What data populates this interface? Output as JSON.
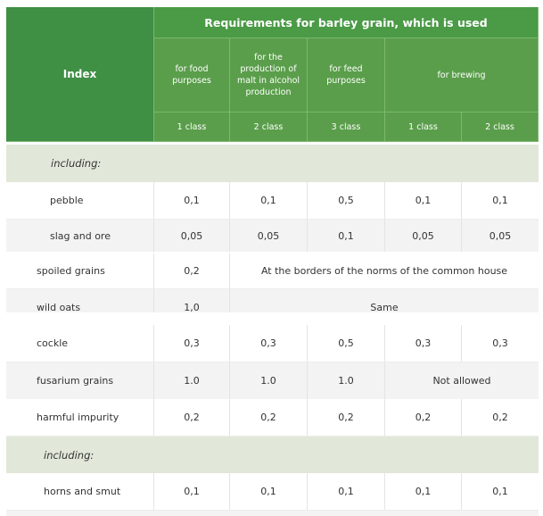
{
  "header": {
    "index_label": "Index",
    "group_title": "Requirements for barley grain, which is used",
    "purposes": [
      "for food purposes",
      "for the production of malt in alcohol production",
      "for feed purposes",
      "for brewing"
    ],
    "classes": [
      "1 class",
      "2 class",
      "3 class",
      "1 class",
      "2 class"
    ]
  },
  "section_label": "including:",
  "rows": [
    {
      "name": "pebble",
      "values": [
        "0,1",
        "0,1",
        "0,5",
        "0,1",
        "0,1"
      ]
    },
    {
      "name": "slag and ore",
      "values": [
        "0,05",
        "0,05",
        "0,1",
        "0,05",
        "0,05"
      ]
    },
    {
      "name": "spoiled grains",
      "values": [
        "0,2"
      ],
      "span_text": "At the borders of the norms of the common house"
    },
    {
      "name": "wild oats",
      "values": [
        "1,0"
      ],
      "span_text": "Same"
    },
    {
      "name": "cockle",
      "values": [
        "0,3",
        "0,3",
        "0,5",
        "0,3",
        "0,3"
      ]
    },
    {
      "name": "fusarium grains",
      "values": [
        "1.0",
        "1.0",
        "1.0"
      ],
      "span_text": "Not allowed"
    },
    {
      "name": "harmful impurity",
      "values": [
        "0,2",
        "0,2",
        "0,2",
        "0,2",
        "0,2"
      ]
    },
    {
      "name": "horns and smut",
      "values": [
        "0,1",
        "0,1",
        "0,1",
        "0,1",
        "0,1"
      ]
    }
  ],
  "colors": {
    "header_green": "#5a9e4b",
    "index_green": "#3f8f45",
    "section_bg": "#e1e8d9",
    "row_alt": "#f3f3f3"
  }
}
